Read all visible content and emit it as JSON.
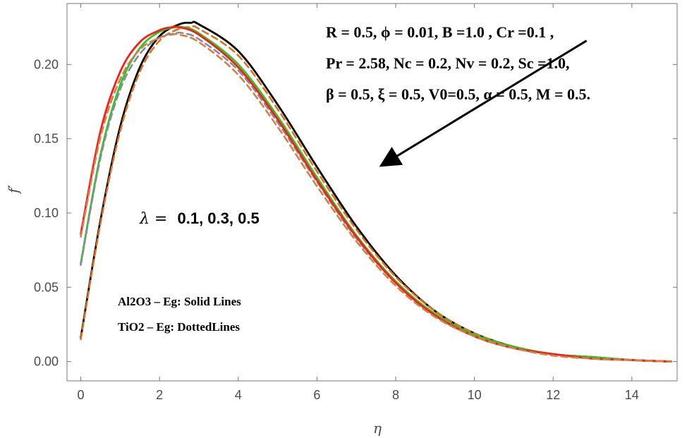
{
  "chart_data": {
    "type": "line",
    "title": "",
    "xlabel": "η",
    "ylabel": "f′",
    "xlim": [
      -0.35,
      15.15
    ],
    "ylim": [
      -0.013,
      0.241
    ],
    "xticks": [
      0,
      2,
      4,
      6,
      8,
      10,
      12,
      14
    ],
    "xtick_labels": [
      "0",
      "2",
      "4",
      "6",
      "8",
      "10",
      "12",
      "14"
    ],
    "yticks": [
      0.0,
      0.05,
      0.1,
      0.15,
      0.2
    ],
    "ytick_labels": [
      "0.00",
      "0.05",
      "0.10",
      "0.15",
      "0.20"
    ],
    "annotations": {
      "params": [
        "R = 0.5, ϕ = 0.01, B =1.0 , Cr =0.1 ,",
        "Pr = 2.58, Nc = 0.2, Nv = 0.2, Sc =1.0,",
        "β = 0.5, ξ = 0.5,  V0=0.5, α = 0.5, M = 0.5."
      ],
      "lambda_symbol": "λ =",
      "lambda_values": "0.1, 0.3, 0.5",
      "legend_solid": "Al2O3 – Eg: Solid Lines",
      "legend_dotted": "TiO2 – Eg: DottedLines",
      "arrow": {
        "from": [
          12.85,
          0.216
        ],
        "to": [
          7.95,
          0.137
        ],
        "note": "direction of increasing λ"
      }
    },
    "series": [
      {
        "name": "Al2O3 λ=0.1",
        "style": "solid",
        "color": "#000000",
        "x": [
          0,
          0.5,
          1,
          1.5,
          2,
          2.5,
          2.8,
          3,
          4,
          5,
          6,
          7,
          8,
          9,
          10,
          11,
          12,
          13,
          14,
          15
        ],
        "y": [
          0.016,
          0.095,
          0.158,
          0.198,
          0.219,
          0.227,
          0.228,
          0.227,
          0.209,
          0.173,
          0.131,
          0.091,
          0.058,
          0.034,
          0.019,
          0.01,
          0.005,
          0.003,
          0.001,
          0.0
        ]
      },
      {
        "name": "TiO2 λ=0.1",
        "style": "dashed",
        "color": "#e07020",
        "x": [
          0,
          0.5,
          1,
          1.5,
          2,
          2.5,
          2.8,
          3,
          4,
          5,
          6,
          7,
          8,
          9,
          10,
          11,
          12,
          13,
          14,
          15
        ],
        "y": [
          0.015,
          0.093,
          0.155,
          0.195,
          0.216,
          0.224,
          0.225,
          0.224,
          0.206,
          0.17,
          0.128,
          0.089,
          0.057,
          0.034,
          0.019,
          0.01,
          0.005,
          0.003,
          0.001,
          0.0
        ]
      },
      {
        "name": "Al2O3 λ=0.3",
        "style": "solid",
        "color": "#22cc22",
        "x": [
          0,
          0.5,
          1,
          1.5,
          2,
          2.4,
          2.6,
          3,
          4,
          5,
          6,
          7,
          8,
          9,
          10,
          11,
          12,
          13,
          14,
          15
        ],
        "y": [
          0.066,
          0.139,
          0.186,
          0.211,
          0.222,
          0.225,
          0.225,
          0.221,
          0.2,
          0.165,
          0.124,
          0.085,
          0.054,
          0.032,
          0.018,
          0.01,
          0.005,
          0.003,
          0.001,
          0.0
        ]
      },
      {
        "name": "TiO2 λ=0.3",
        "style": "dashed",
        "color": "#8a8aa0",
        "x": [
          0,
          0.5,
          1,
          1.5,
          2,
          2.4,
          2.6,
          3,
          4,
          5,
          6,
          7,
          8,
          9,
          10,
          11,
          12,
          13,
          14,
          15
        ],
        "y": [
          0.065,
          0.137,
          0.183,
          0.207,
          0.218,
          0.221,
          0.221,
          0.217,
          0.196,
          0.161,
          0.121,
          0.083,
          0.053,
          0.031,
          0.017,
          0.009,
          0.005,
          0.002,
          0.001,
          0.0
        ]
      },
      {
        "name": "Al2O3 λ=0.5",
        "style": "solid",
        "color": "#ff1a1a",
        "x": [
          0,
          0.5,
          1,
          1.5,
          2,
          2.3,
          2.5,
          3,
          4,
          5,
          6,
          7,
          8,
          9,
          10,
          11,
          12,
          13,
          14,
          15
        ],
        "y": [
          0.086,
          0.155,
          0.195,
          0.215,
          0.223,
          0.225,
          0.225,
          0.22,
          0.198,
          0.163,
          0.122,
          0.084,
          0.053,
          0.031,
          0.017,
          0.009,
          0.005,
          0.002,
          0.001,
          0.0
        ]
      },
      {
        "name": "TiO2 λ=0.5",
        "style": "dashed",
        "color": "#d88040",
        "x": [
          0,
          0.5,
          1,
          1.5,
          2,
          2.3,
          2.5,
          3,
          4,
          5,
          6,
          7,
          8,
          9,
          10,
          11,
          12,
          13,
          14,
          15
        ],
        "y": [
          0.084,
          0.151,
          0.19,
          0.21,
          0.218,
          0.22,
          0.22,
          0.215,
          0.193,
          0.158,
          0.118,
          0.081,
          0.051,
          0.03,
          0.017,
          0.009,
          0.004,
          0.002,
          0.001,
          0.0
        ]
      }
    ]
  }
}
